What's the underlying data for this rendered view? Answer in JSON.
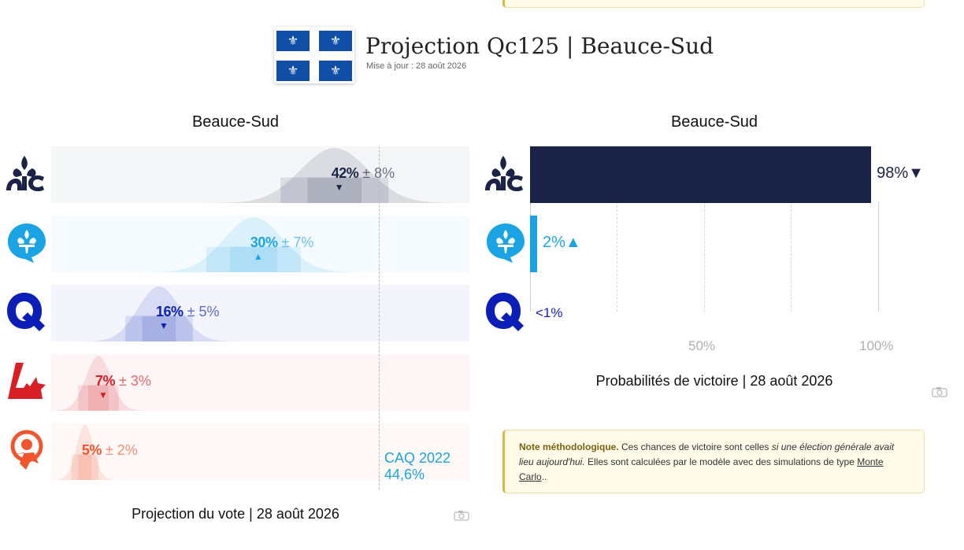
{
  "header": {
    "title": "Projection Qc125 | Beauce-Sud",
    "updated": "Mise à jour : 28 août 2026",
    "flag_glyph": "⚜"
  },
  "parties": [
    {
      "icon": "caq-logo-icon",
      "color": "#1b2347",
      "light": "#c2c4cd"
    },
    {
      "icon": "plq-logo-icon",
      "color": "#1aa4e6",
      "light": "#bde6fb"
    },
    {
      "icon": "pq-logo-icon",
      "color": "#0b1fb8",
      "light": "#b6bdf0"
    },
    {
      "icon": "pcq-logo-icon",
      "color": "#d91f26",
      "light": "#f5b9bc"
    },
    {
      "icon": "qs-logo-icon",
      "color": "#f2542d",
      "light": "#fbc7b9"
    }
  ],
  "vote_panel": {
    "title": "Beauce-Sud",
    "caption": "Projection du vote | 28 août 2026",
    "reference_label_line1": "CAQ 2022",
    "reference_label_line2": "44,6%"
  },
  "prob_panel": {
    "title": "Beauce-Sud",
    "caption": "Probabilités de victoire | 28 août 2026",
    "ticks": [
      "50%",
      "100%"
    ]
  },
  "chart_data": [
    {
      "type": "bar",
      "title": "Beauce-Sud",
      "caption": "Projection du vote | 28 août 2026",
      "categories": [
        "CAQ",
        "PLQ",
        "PQ",
        "PCQ",
        "QS"
      ],
      "values": [
        42,
        30,
        16,
        7,
        5
      ],
      "margins": [
        8,
        7,
        5,
        3,
        2
      ],
      "value_labels": [
        "42%",
        "30%",
        "16%",
        "7%",
        "5%"
      ],
      "margin_labels": [
        "± 8%",
        "± 7%",
        "± 5%",
        "± 3%",
        "± 2%"
      ],
      "trend": [
        "▼",
        "▲",
        "▼",
        "▼",
        ""
      ],
      "x_range": [
        0,
        62
      ],
      "reference": {
        "label": "CAQ 2022",
        "value": 44.6,
        "value_label": "44,6%"
      },
      "grid": false
    },
    {
      "type": "bar",
      "orientation": "horizontal",
      "title": "Beauce-Sud",
      "caption": "Probabilités de victoire | 28 août 2026",
      "categories": [
        "CAQ",
        "PLQ",
        "PQ"
      ],
      "values": [
        98,
        2,
        0.5
      ],
      "labels": [
        "98%",
        "2%",
        "<1%"
      ],
      "trend": [
        "▼",
        "▲",
        ""
      ],
      "x_range": [
        0,
        100
      ],
      "x_ticks": [
        "50%",
        "100%"
      ],
      "grid": true
    }
  ],
  "note": {
    "bold": "Note méthodologique.",
    "text1": " Ces chances de victoire sont celles ",
    "italic": "si une élection générale avait lieu aujourd'hui.",
    "text2": " Elles sont calculées par le modèle avec des simulations de type ",
    "link": "Monte Carlo",
    "text3": ".."
  }
}
